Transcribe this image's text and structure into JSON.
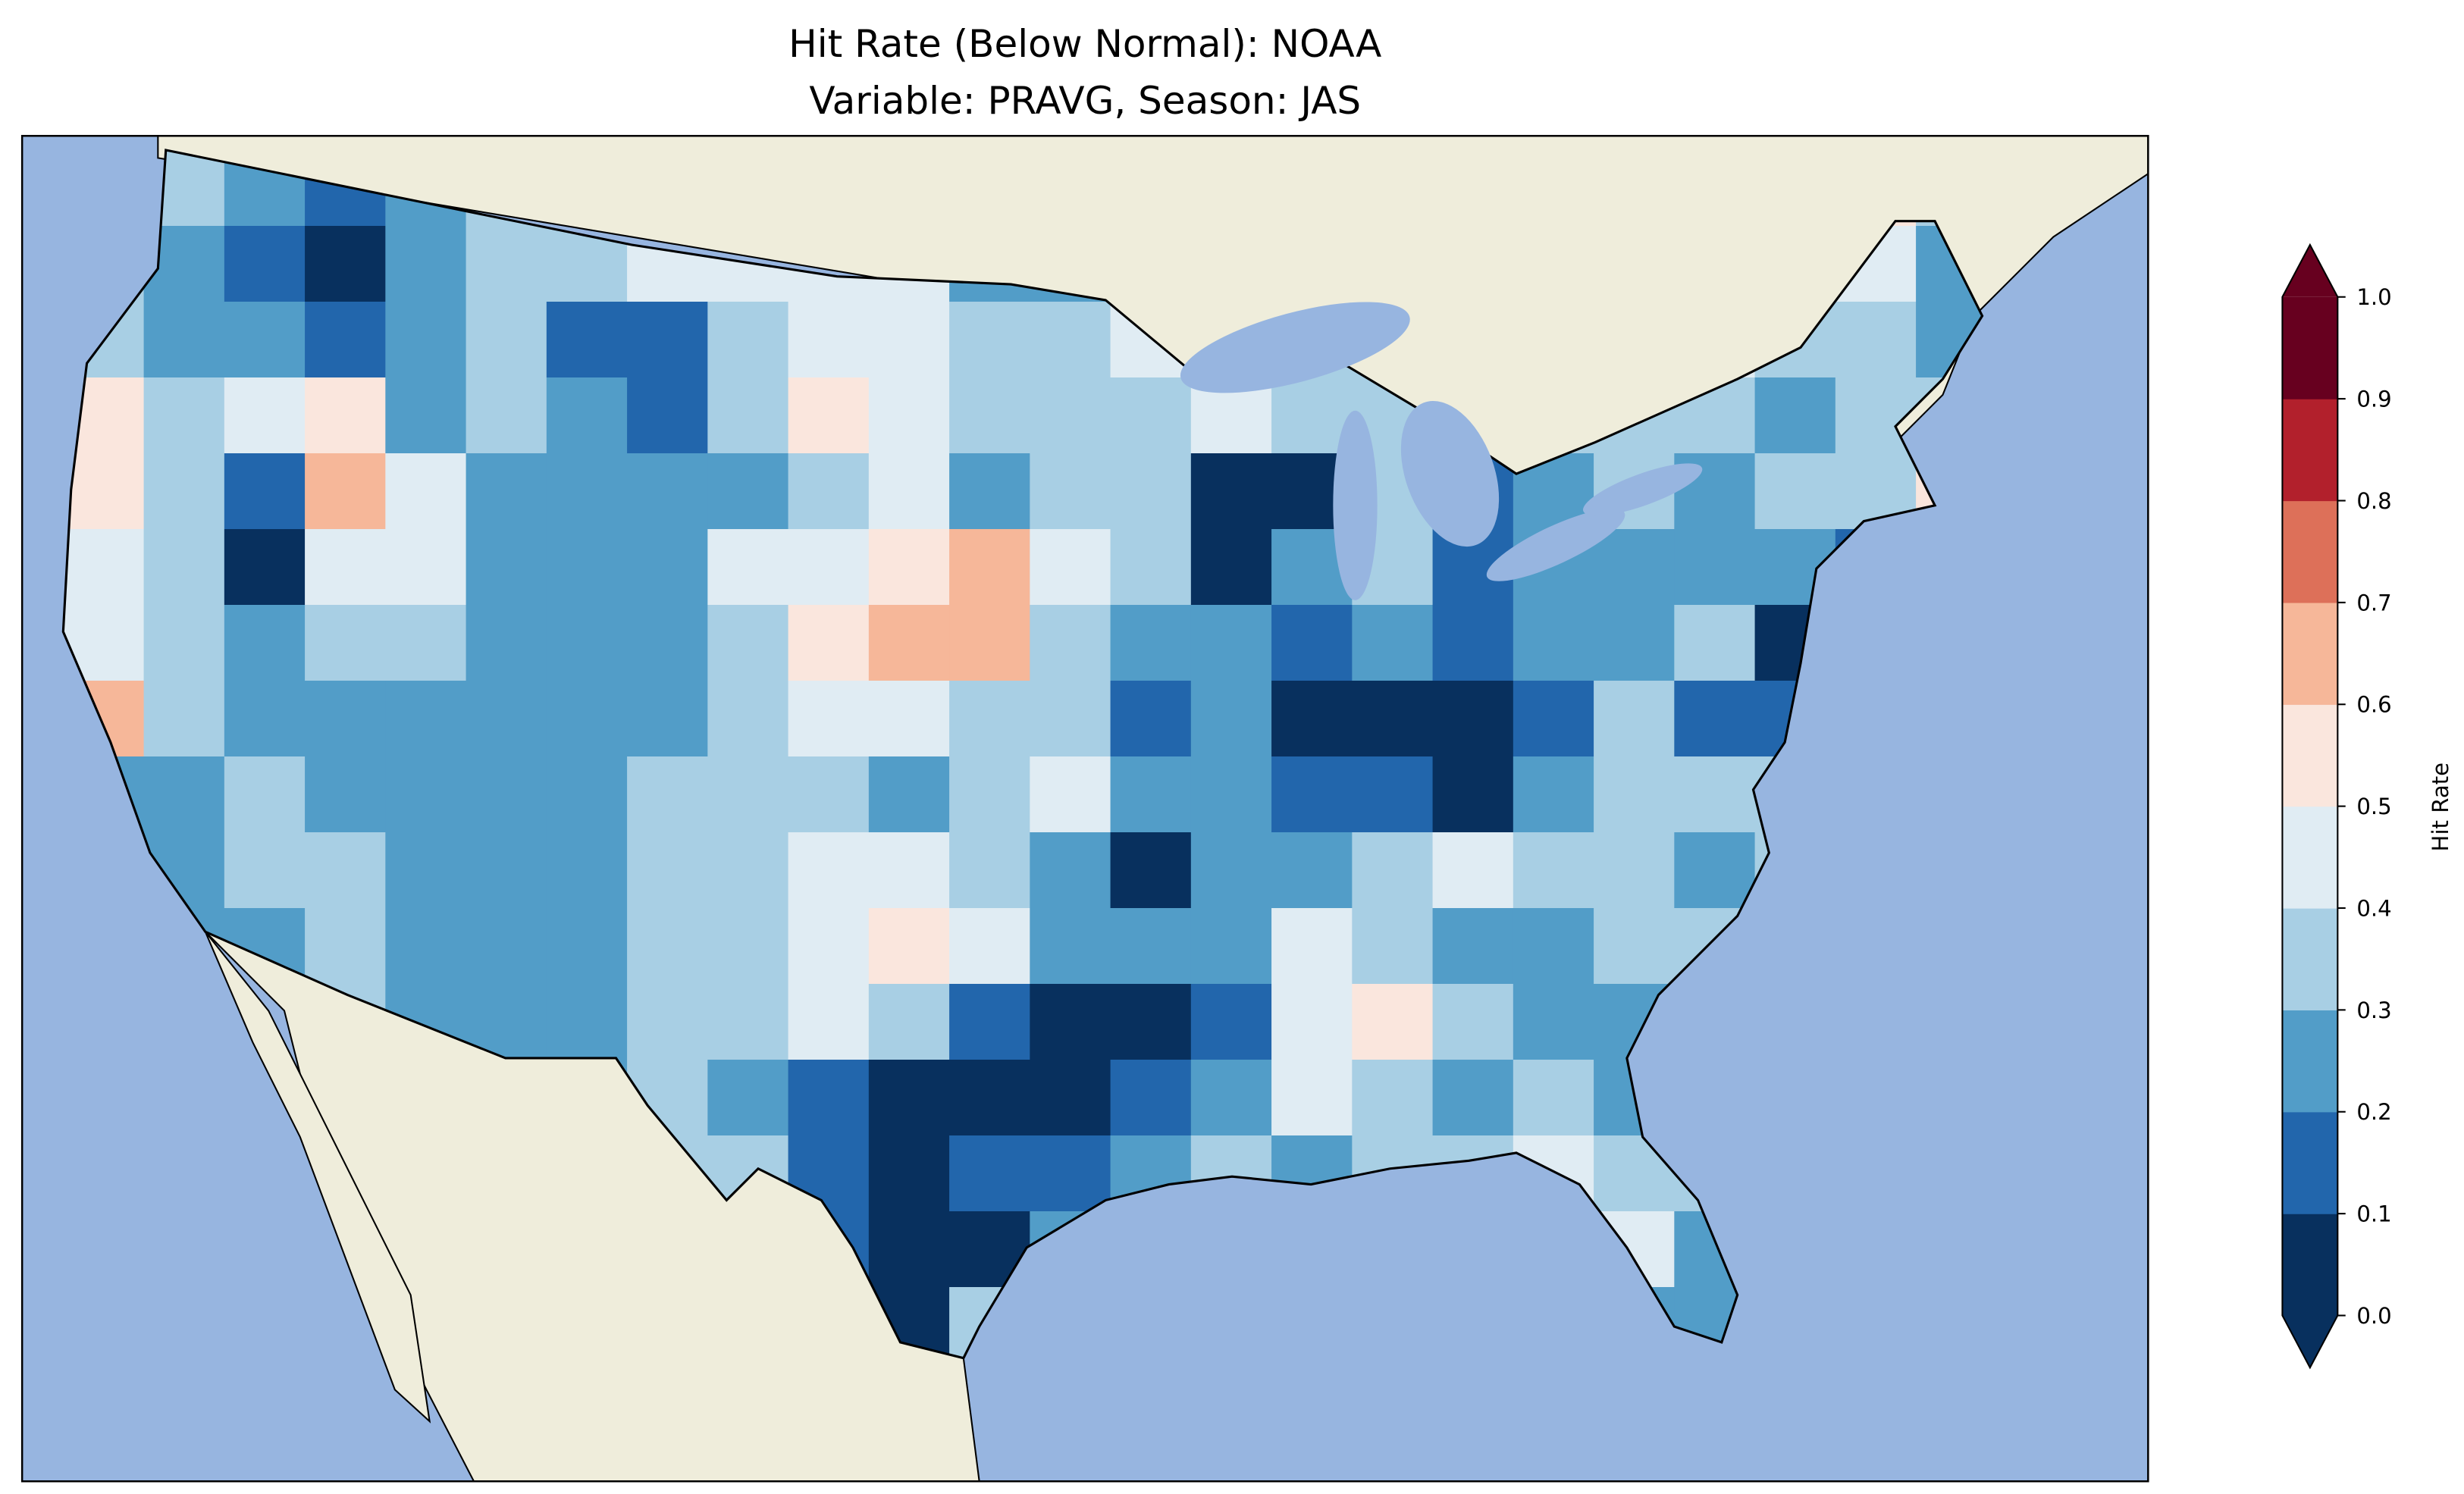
{
  "chart_data": {
    "type": "heatmap",
    "title": "Hit Rate (Below Normal): NOAA",
    "subtitle": "Variable: PRAVG, Season: JAS",
    "colorbar": {
      "label": "Hit Rate",
      "range": [
        0.0,
        1.0
      ],
      "extend": "both",
      "ticks": [
        "0.0",
        "0.1",
        "0.2",
        "0.3",
        "0.4",
        "0.5",
        "0.6",
        "0.7",
        "0.8",
        "0.9",
        "1.0"
      ],
      "colors": [
        "#08305e",
        "#2266ac",
        "#529dc8",
        "#a8cfe4",
        "#e0ecf3",
        "#fae6dd",
        "#f6b799",
        "#dd7059",
        "#b2202c",
        "#67001f"
      ]
    },
    "map_colors": {
      "ocean": "#97b5e0",
      "land": "#efeddb"
    },
    "region": "Contiguous United States",
    "grid_note": "coarse approximation, rows north to south, columns west to east; values are colour class indices (0 = 0.0-0.1 ... 9 = 0.9-1.0)",
    "grid_classes": [
      [
        3,
        3,
        2,
        1,
        2,
        3,
        4,
        4,
        4,
        4,
        4,
        2,
        3,
        3,
        3,
        3,
        3,
        3,
        3,
        3,
        3,
        3,
        5,
        3
      ],
      [
        3,
        2,
        1,
        0,
        2,
        3,
        3,
        4,
        4,
        4,
        4,
        2,
        2,
        3,
        4,
        3,
        3,
        3,
        3,
        3,
        3,
        3,
        4,
        2
      ],
      [
        3,
        2,
        2,
        1,
        2,
        3,
        1,
        1,
        3,
        4,
        4,
        3,
        3,
        4,
        4,
        3,
        3,
        3,
        3,
        3,
        4,
        3,
        3,
        2
      ],
      [
        5,
        3,
        4,
        5,
        2,
        3,
        2,
        1,
        3,
        5,
        4,
        3,
        3,
        3,
        4,
        3,
        3,
        3,
        3,
        3,
        3,
        2,
        3,
        3
      ],
      [
        5,
        3,
        1,
        6,
        4,
        2,
        2,
        2,
        2,
        3,
        4,
        2,
        3,
        3,
        0,
        0,
        3,
        1,
        2,
        3,
        2,
        3,
        3,
        5
      ],
      [
        4,
        3,
        0,
        4,
        4,
        2,
        2,
        2,
        4,
        4,
        5,
        6,
        4,
        3,
        0,
        2,
        3,
        1,
        2,
        2,
        2,
        2,
        1,
        3
      ],
      [
        4,
        3,
        2,
        3,
        3,
        2,
        2,
        2,
        3,
        5,
        6,
        6,
        3,
        2,
        2,
        1,
        2,
        1,
        2,
        2,
        3,
        0,
        1,
        3
      ],
      [
        6,
        3,
        2,
        2,
        2,
        2,
        2,
        2,
        3,
        4,
        4,
        3,
        3,
        1,
        2,
        0,
        0,
        0,
        1,
        3,
        1,
        1,
        2,
        3
      ],
      [
        2,
        2,
        3,
        2,
        2,
        2,
        2,
        3,
        3,
        3,
        2,
        3,
        4,
        2,
        2,
        1,
        1,
        0,
        2,
        3,
        3,
        3,
        3,
        3
      ],
      [
        2,
        2,
        3,
        3,
        2,
        2,
        2,
        3,
        3,
        4,
        4,
        3,
        2,
        0,
        2,
        2,
        3,
        4,
        3,
        3,
        2,
        3,
        3,
        2
      ],
      [
        2,
        2,
        2,
        3,
        2,
        2,
        2,
        3,
        3,
        4,
        5,
        4,
        2,
        2,
        2,
        4,
        3,
        2,
        2,
        3,
        3,
        2,
        2,
        2
      ],
      [
        2,
        2,
        2,
        3,
        2,
        2,
        2,
        3,
        3,
        4,
        3,
        1,
        0,
        0,
        1,
        4,
        5,
        3,
        2,
        2,
        2,
        2,
        2,
        2
      ],
      [
        2,
        2,
        2,
        2,
        2,
        2,
        2,
        3,
        2,
        1,
        0,
        0,
        0,
        1,
        2,
        4,
        3,
        2,
        3,
        2,
        2,
        2,
        2,
        2
      ],
      [
        2,
        2,
        2,
        2,
        2,
        2,
        2,
        3,
        3,
        1,
        0,
        1,
        1,
        2,
        3,
        2,
        3,
        3,
        4,
        3,
        3,
        3,
        3,
        3
      ],
      [
        2,
        2,
        2,
        2,
        2,
        2,
        2,
        3,
        3,
        1,
        0,
        0,
        2,
        3,
        3,
        3,
        3,
        3,
        4,
        4,
        2,
        3,
        3,
        3
      ],
      [
        2,
        2,
        2,
        2,
        2,
        2,
        2,
        3,
        3,
        0,
        0,
        3,
        3,
        3,
        3,
        3,
        3,
        3,
        3,
        2,
        2,
        3,
        3,
        3
      ]
    ]
  }
}
